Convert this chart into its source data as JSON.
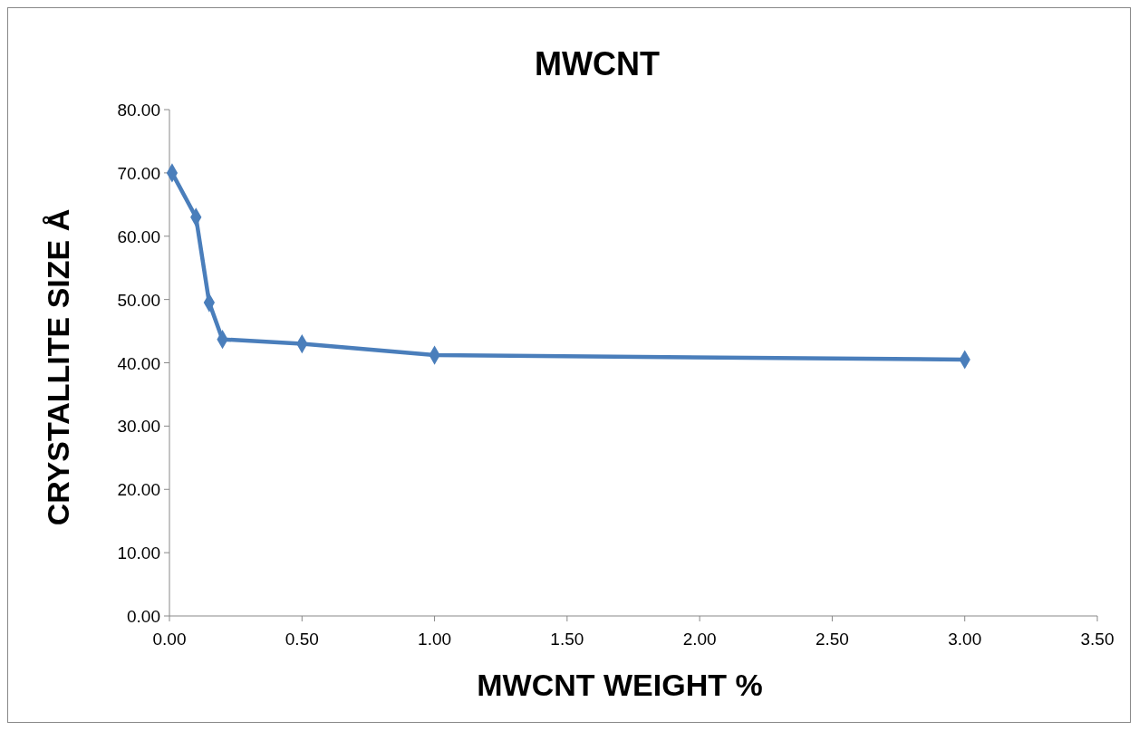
{
  "chart_data": {
    "type": "line",
    "title": "MWCNT",
    "xlabel": "MWCNT WEIGHT %",
    "ylabel": "CRYSTALLITE SIZE Å",
    "x": [
      0.01,
      0.1,
      0.15,
      0.2,
      0.5,
      1.0,
      3.0
    ],
    "series": [
      {
        "color": "#4a7ebb",
        "values": [
          70.0,
          63.0,
          49.5,
          43.7,
          43.0,
          41.2,
          40.5
        ]
      }
    ],
    "xlim": [
      0,
      3.5
    ],
    "ylim": [
      0,
      80
    ],
    "xticks": [
      {
        "value": 0,
        "label": "0.00"
      },
      {
        "value": 0.5,
        "label": "0.50"
      },
      {
        "value": 1,
        "label": "1.00"
      },
      {
        "value": 1.5,
        "label": "1.50"
      },
      {
        "value": 2,
        "label": "2.00"
      },
      {
        "value": 2.5,
        "label": "2.50"
      },
      {
        "value": 3,
        "label": "3.00"
      },
      {
        "value": 3.5,
        "label": "3.50"
      }
    ],
    "yticks": [
      {
        "value": 0,
        "label": "0.00"
      },
      {
        "value": 10,
        "label": "10.00"
      },
      {
        "value": 20,
        "label": "20.00"
      },
      {
        "value": 30,
        "label": "30.00"
      },
      {
        "value": 40,
        "label": "40.00"
      },
      {
        "value": 50,
        "label": "50.00"
      },
      {
        "value": 60,
        "label": "60.00"
      },
      {
        "value": 70,
        "label": "70.00"
      },
      {
        "value": 80,
        "label": "80.00"
      }
    ],
    "grid": false,
    "marker": "diamond",
    "line_style": "solid"
  }
}
